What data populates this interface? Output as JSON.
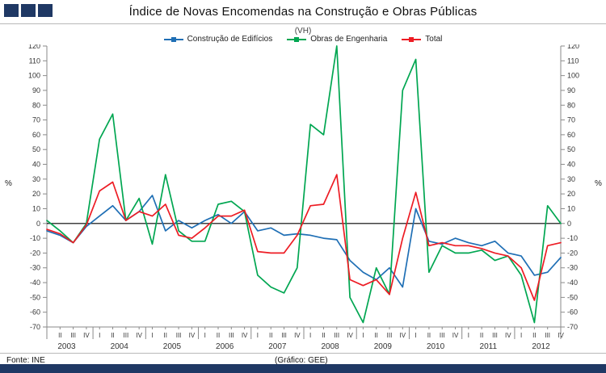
{
  "header": {
    "title": "Índice de Novas Encomendas na Construção e Obras Públicas",
    "subtitle": "(VH)"
  },
  "footer": {
    "source": "Fonte:  INE",
    "credit": "(Gráfico:  GEE)"
  },
  "colors": {
    "navy": "#1F3864",
    "blue": "#1F6FB5",
    "green": "#00A651",
    "red": "#ED1C24",
    "axis": "#8a8a8a",
    "zero_line": "#000000"
  },
  "chart_data": {
    "type": "line",
    "title": "Índice de Novas Encomendas na Construção e Obras Públicas (VH)",
    "ylabel_left": "%",
    "ylabel_right": "%",
    "ylim": [
      -70,
      120
    ],
    "ytick_step": 10,
    "grid": "zero-line-only",
    "legend_position": "top",
    "years": [
      "2003",
      "2004",
      "2005",
      "2006",
      "2007",
      "2008",
      "2009",
      "2010",
      "2011",
      "2012"
    ],
    "quarter_labels": [
      "I",
      "II",
      "III",
      "IV"
    ],
    "series": [
      {
        "name": "Construção de Edifícios",
        "color": "#1F6FB5",
        "values": [
          -5,
          -8,
          -13,
          -2,
          5,
          12,
          2,
          8,
          19,
          -5,
          2,
          -3,
          2,
          6,
          0,
          8,
          -5,
          -3,
          -8,
          -7,
          -8,
          -10,
          -11,
          -25,
          -33,
          -38,
          -30,
          -43,
          10,
          -12,
          -14,
          -10,
          -13,
          -15,
          -12,
          -20,
          -22,
          -35,
          -33,
          -23
        ]
      },
      {
        "name": "Obras de Engenharia",
        "color": "#00A651",
        "values": [
          2,
          -5,
          -13,
          0,
          57,
          74,
          2,
          17,
          -14,
          33,
          -5,
          -12,
          -12,
          13,
          15,
          8,
          -35,
          -43,
          -47,
          -30,
          67,
          60,
          120,
          -50,
          -67,
          -30,
          -48,
          90,
          111,
          -33,
          -15,
          -20,
          -20,
          -18,
          -25,
          -22,
          -35,
          -67,
          12,
          0
        ]
      },
      {
        "name": "Total",
        "color": "#ED1C24",
        "values": [
          -4,
          -7,
          -13,
          -1,
          22,
          28,
          2,
          8,
          5,
          13,
          -8,
          -10,
          -3,
          5,
          5,
          9,
          -19,
          -20,
          -20,
          -8,
          12,
          13,
          33,
          -38,
          -42,
          -38,
          -48,
          -10,
          21,
          -15,
          -13,
          -15,
          -15,
          -17,
          -20,
          -22,
          -30,
          -52,
          -15,
          -13
        ]
      }
    ]
  }
}
